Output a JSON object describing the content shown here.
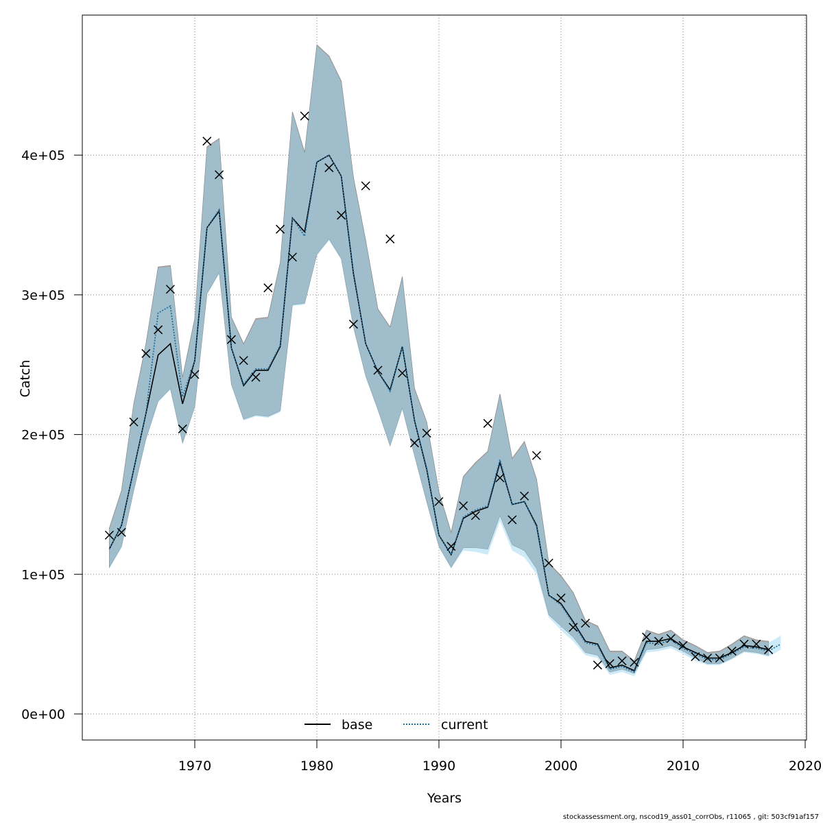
{
  "chart_data": {
    "type": "line",
    "title": "",
    "xlabel": "Years",
    "ylabel": "Catch",
    "xlim": [
      1961,
      2020
    ],
    "ylim": [
      -20000,
      480000
    ],
    "x_ticks": [
      1970,
      1980,
      1990,
      2000,
      2010,
      2020
    ],
    "y_ticks": [
      0,
      100000,
      200000,
      300000,
      400000
    ],
    "x_tick_labels": [
      "1970",
      "1980",
      "1990",
      "2000",
      "2010",
      "2020"
    ],
    "y_tick_labels": [
      "0e+00",
      "1e+05",
      "2e+05",
      "3e+05",
      "4e+05"
    ],
    "grid": true,
    "legend_position": "bottom-center",
    "years": [
      1963,
      1964,
      1965,
      1966,
      1967,
      1968,
      1969,
      1970,
      1971,
      1972,
      1973,
      1974,
      1975,
      1976,
      1977,
      1978,
      1979,
      1980,
      1981,
      1982,
      1983,
      1984,
      1985,
      1986,
      1987,
      1988,
      1989,
      1990,
      1991,
      1992,
      1993,
      1994,
      1995,
      1996,
      1997,
      1998,
      1999,
      2000,
      2001,
      2002,
      2003,
      2004,
      2005,
      2006,
      2007,
      2008,
      2009,
      2010,
      2011,
      2012,
      2013,
      2014,
      2015,
      2016,
      2017,
      2018
    ],
    "series": [
      {
        "name": "base",
        "color": "#000000",
        "style": "solid",
        "values": [
          118000,
          135000,
          175000,
          215000,
          257000,
          265000,
          222000,
          253000,
          348000,
          360000,
          262000,
          235000,
          246000,
          246000,
          263000,
          355000,
          345000,
          395000,
          400000,
          385000,
          315000,
          265000,
          245000,
          232000,
          263000,
          210000,
          175000,
          128000,
          114000,
          140000,
          145000,
          148000,
          180000,
          150000,
          152000,
          135000,
          85000,
          79000,
          66000,
          52000,
          50000,
          33000,
          35000,
          31000,
          52000,
          52000,
          54000,
          48000,
          44000,
          40000,
          40000,
          44000,
          49000,
          48000,
          46000,
          null
        ],
        "ci_lower": [
          105000,
          120000,
          160000,
          197000,
          224000,
          233000,
          194000,
          220000,
          301000,
          316000,
          236000,
          211000,
          214000,
          213000,
          217000,
          293000,
          294000,
          329000,
          340000,
          326000,
          277000,
          242000,
          218000,
          192000,
          219000,
          185000,
          152000,
          120000,
          105000,
          119000,
          119000,
          118000,
          142000,
          121000,
          117000,
          104000,
          71000,
          63000,
          55000,
          44000,
          42000,
          30000,
          32000,
          29000,
          46000,
          47000,
          49000,
          45000,
          40000,
          36000,
          36000,
          40000,
          45000,
          44000,
          42000,
          null
        ],
        "ci_upper": [
          133000,
          160000,
          222000,
          265000,
          320000,
          321000,
          241000,
          283000,
          406000,
          412000,
          284000,
          265000,
          283000,
          284000,
          323000,
          431000,
          402000,
          479000,
          471000,
          453000,
          384000,
          339000,
          290000,
          277000,
          313000,
          233000,
          209000,
          159000,
          130000,
          170000,
          180000,
          188000,
          229000,
          183000,
          195000,
          168000,
          108000,
          99000,
          87000,
          67000,
          63000,
          45000,
          45000,
          38000,
          60000,
          57000,
          60000,
          53000,
          49000,
          44000,
          45000,
          50000,
          56000,
          53000,
          52000,
          null
        ]
      },
      {
        "name": "current",
        "color": "#1e6fa0",
        "style": "dotted",
        "values": [
          118000,
          135000,
          175000,
          215000,
          287000,
          292000,
          227000,
          253000,
          348000,
          361000,
          262000,
          236000,
          247000,
          247000,
          264000,
          355000,
          342000,
          395000,
          400000,
          385000,
          316000,
          265000,
          245000,
          231000,
          263000,
          210000,
          176000,
          128000,
          114000,
          141000,
          146000,
          149000,
          182000,
          150000,
          152000,
          134000,
          85000,
          78000,
          65000,
          51000,
          49000,
          32000,
          34000,
          30000,
          51000,
          50000,
          53000,
          47000,
          43000,
          39000,
          39000,
          43000,
          48000,
          47000,
          45000,
          50000
        ],
        "ci_lower": [
          104000,
          119000,
          159000,
          196000,
          223000,
          232000,
          193000,
          219000,
          300000,
          315000,
          235000,
          210000,
          213000,
          212000,
          216000,
          292000,
          293000,
          328000,
          339000,
          325000,
          276000,
          241000,
          217000,
          191000,
          218000,
          184000,
          151000,
          119000,
          104000,
          117000,
          116000,
          114000,
          138000,
          117000,
          112000,
          100000,
          69000,
          60000,
          52000,
          42000,
          40000,
          28000,
          30000,
          27000,
          44000,
          45000,
          47000,
          43000,
          38000,
          35000,
          35000,
          39000,
          44000,
          43000,
          41000,
          46000
        ],
        "ci_upper": [
          132000,
          159000,
          221000,
          264000,
          319000,
          320000,
          240000,
          282000,
          405000,
          411000,
          283000,
          264000,
          282000,
          283000,
          322000,
          430000,
          401000,
          478000,
          470000,
          452000,
          383000,
          338000,
          289000,
          276000,
          312000,
          232000,
          208000,
          158000,
          129000,
          169000,
          179000,
          187000,
          228000,
          182000,
          194000,
          167000,
          107000,
          98000,
          86000,
          66000,
          62000,
          44000,
          44000,
          37000,
          59000,
          56000,
          59000,
          52000,
          48000,
          43000,
          44000,
          49000,
          55000,
          52000,
          51000,
          56000
        ]
      }
    ],
    "observations": {
      "marker": "x",
      "years": [
        1963,
        1964,
        1965,
        1966,
        1967,
        1968,
        1969,
        1970,
        1971,
        1972,
        1973,
        1974,
        1975,
        1976,
        1977,
        1978,
        1979,
        1981,
        1982,
        1983,
        1984,
        1985,
        1986,
        1987,
        1988,
        1989,
        1990,
        1991,
        1992,
        1993,
        1994,
        1995,
        1996,
        1997,
        1998,
        1999,
        2000,
        2001,
        2002,
        2003,
        2004,
        2005,
        2006,
        2007,
        2008,
        2009,
        2010,
        2011,
        2012,
        2013,
        2014,
        2015,
        2016,
        2017
      ],
      "values": [
        128000,
        130000,
        209000,
        258000,
        275000,
        304000,
        204000,
        243000,
        410000,
        386000,
        268000,
        253000,
        241000,
        305000,
        347000,
        327000,
        428000,
        391000,
        357000,
        279000,
        378000,
        246000,
        340000,
        244000,
        194000,
        201000,
        152000,
        120000,
        149000,
        142000,
        208000,
        169000,
        139000,
        156000,
        185000,
        108000,
        83000,
        62000,
        65000,
        35000,
        36000,
        38000,
        37000,
        55000,
        52000,
        54000,
        49000,
        41000,
        40000,
        40000,
        45000,
        50000,
        50000,
        46000
      ]
    },
    "colors": {
      "band_base": "#a0a0a0",
      "band_current": "#8fd0ee",
      "line_base": "#000000",
      "line_current": "#1e6fa0",
      "grid": "#808080"
    }
  },
  "legend": {
    "base": "base",
    "current": "current"
  },
  "footer": {
    "text": "stockassessment.org, nscod19_ass01_corrObs, r11065 , git: 503cf91af157"
  }
}
